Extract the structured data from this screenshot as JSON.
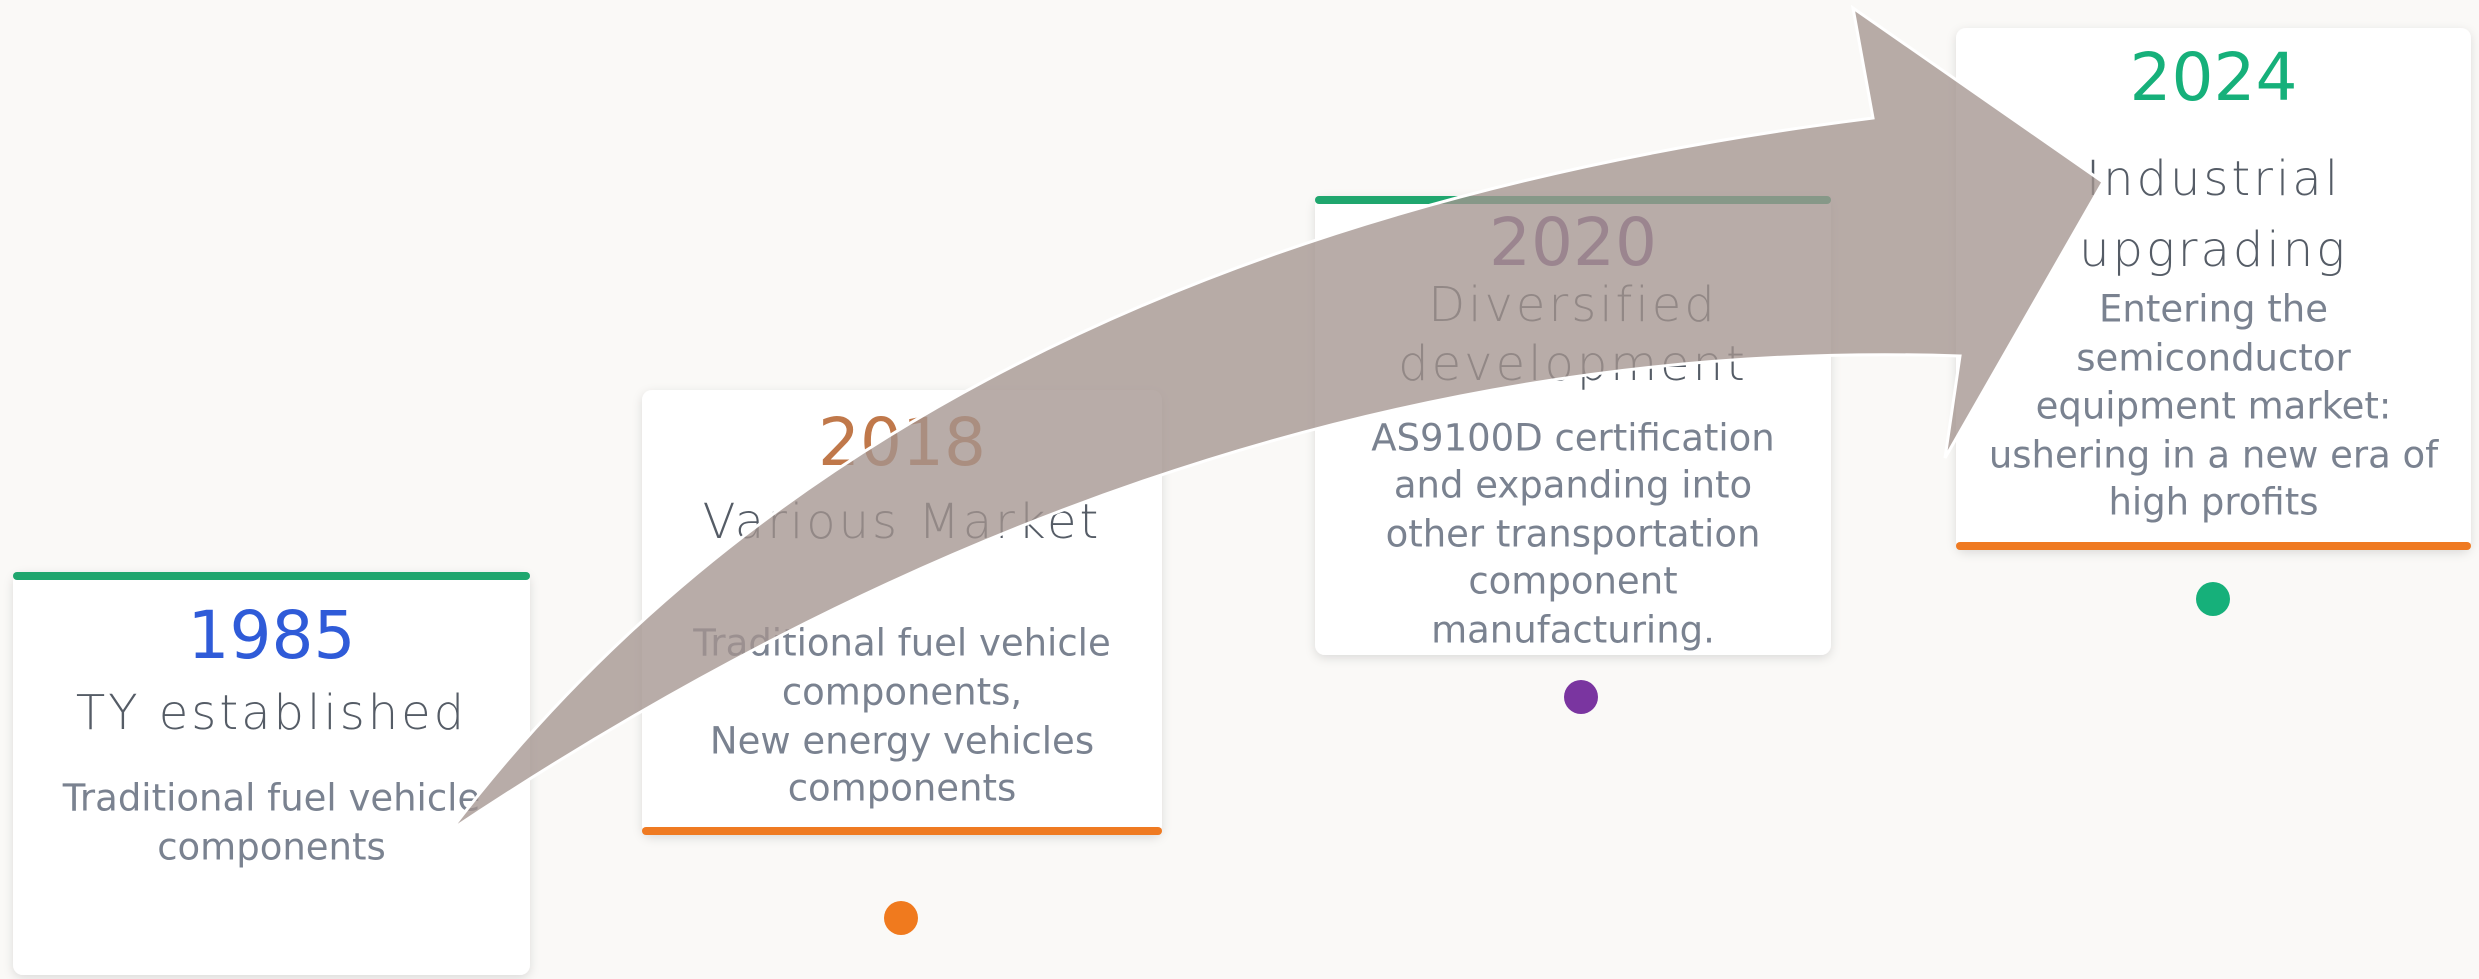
{
  "milestones": [
    {
      "year": "1985",
      "title": [
        "TY established"
      ],
      "description": [
        "Traditional fuel vehicle",
        "components"
      ]
    },
    {
      "year": "2018",
      "title": [
        "Various Market"
      ],
      "description": [
        "Traditional fuel vehicle",
        "components,",
        "New energy vehicles",
        "components"
      ]
    },
    {
      "year": "2020",
      "title": [
        "Diversified",
        "development"
      ],
      "description": [
        "AS9100D certification",
        "and expanding into",
        "other transportation",
        "component",
        "manufacturing."
      ]
    },
    {
      "year": "2024",
      "title": [
        "Industrial",
        "upgrading"
      ],
      "description": [
        "Entering the",
        "semiconductor",
        "equipment market:",
        "ushering in a new era of",
        "high profits"
      ]
    }
  ]
}
